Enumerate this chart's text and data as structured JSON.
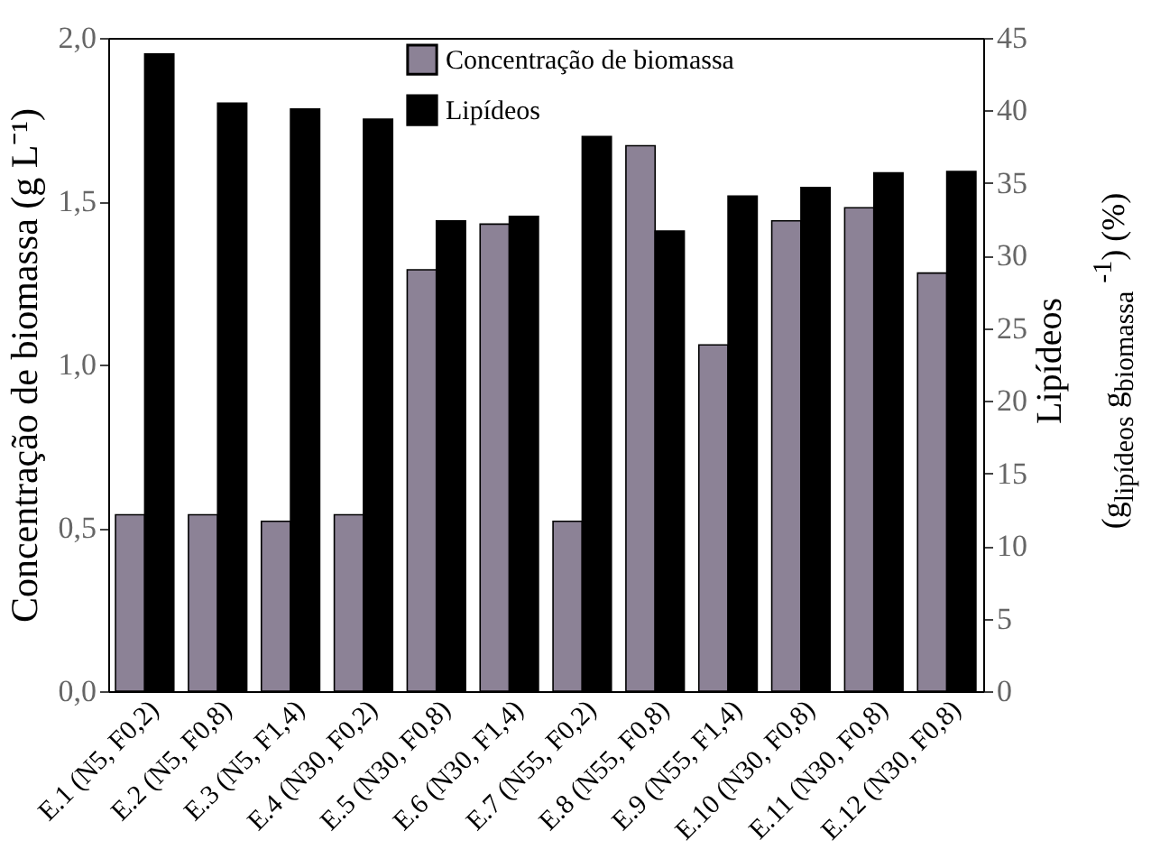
{
  "chart_data": {
    "type": "bar",
    "categories": [
      "E.1 (N5, F0,2)",
      "E.2 (N5, F0,8)",
      "E.3 (N5, F1,4)",
      "E.4 (N30, F0,2)",
      "E.5 (N30, F0,8)",
      "E.6 (N30, F1,4)",
      "E.7 (N55, F0,2)",
      "E.8 (N55, F0,8)",
      "E.9 (N55, F1,4)",
      "E.10 (N30, F0,8)",
      "E.11 (N30, F0,8)",
      "E.12 (N30, F0,8)"
    ],
    "series": [
      {
        "name": "Concentração de biomassa",
        "color": "#8c8296",
        "values": [
          0.54,
          0.54,
          0.52,
          0.54,
          1.29,
          1.43,
          0.52,
          1.67,
          1.06,
          1.44,
          1.48,
          1.28
        ]
      },
      {
        "name": "Lipídeos",
        "color": "#000000",
        "axis": "y2",
        "values": [
          43.9,
          40.5,
          40.1,
          39.4,
          32.4,
          32.7,
          38.2,
          31.7,
          34.1,
          34.7,
          35.7,
          35.8
        ]
      }
    ],
    "ylabel": "Concentração de biomassa (g L⁻¹)",
    "y2label": "Lipídeos\n(g$_{lipídeos}$ g$_{biomassa}$ $^{-1}$) (%)",
    "ylim": [
      0,
      2.0
    ],
    "yticks": [
      {
        "value": 0,
        "label": "0,0"
      },
      {
        "value": 0.5,
        "label": "0,5"
      },
      {
        "value": 1.0,
        "label": "1,0"
      },
      {
        "value": 1.5,
        "label": "1,5"
      },
      {
        "value": 2.0,
        "label": "2,0"
      }
    ],
    "y2lim": [
      0,
      45
    ],
    "y2ticks": [
      0,
      5,
      10,
      15,
      20,
      25,
      30,
      35,
      40,
      45
    ],
    "grid": false,
    "legend": "top"
  }
}
